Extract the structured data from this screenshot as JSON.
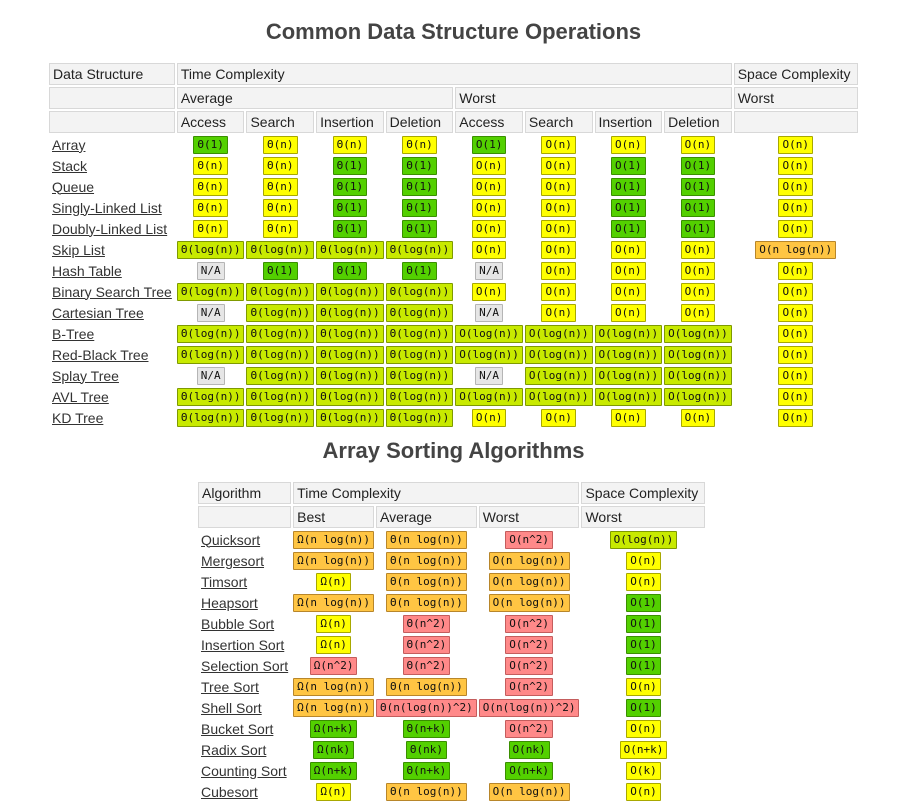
{
  "ds_title": "Common Data Structure Operations",
  "ds_headers": {
    "data_structure": "Data Structure",
    "time_complexity": "Time Complexity",
    "space_complexity": "Space Complexity",
    "average": "Average",
    "worst": "Worst",
    "space_worst": "Worst",
    "ops": [
      "Access",
      "Search",
      "Insertion",
      "Deletion",
      "Access",
      "Search",
      "Insertion",
      "Deletion"
    ]
  },
  "ds_rows": [
    {
      "name": "Array",
      "cells": [
        [
          "Θ(1)",
          "good"
        ],
        [
          "Θ(n)",
          "ok"
        ],
        [
          "Θ(n)",
          "ok"
        ],
        [
          "Θ(n)",
          "ok"
        ],
        [
          "O(1)",
          "good"
        ],
        [
          "O(n)",
          "ok"
        ],
        [
          "O(n)",
          "ok"
        ],
        [
          "O(n)",
          "ok"
        ],
        [
          "O(n)",
          "ok"
        ]
      ]
    },
    {
      "name": "Stack",
      "cells": [
        [
          "Θ(n)",
          "ok"
        ],
        [
          "Θ(n)",
          "ok"
        ],
        [
          "Θ(1)",
          "good"
        ],
        [
          "Θ(1)",
          "good"
        ],
        [
          "O(n)",
          "ok"
        ],
        [
          "O(n)",
          "ok"
        ],
        [
          "O(1)",
          "good"
        ],
        [
          "O(1)",
          "good"
        ],
        [
          "O(n)",
          "ok"
        ]
      ]
    },
    {
      "name": "Queue",
      "cells": [
        [
          "Θ(n)",
          "ok"
        ],
        [
          "Θ(n)",
          "ok"
        ],
        [
          "Θ(1)",
          "good"
        ],
        [
          "Θ(1)",
          "good"
        ],
        [
          "O(n)",
          "ok"
        ],
        [
          "O(n)",
          "ok"
        ],
        [
          "O(1)",
          "good"
        ],
        [
          "O(1)",
          "good"
        ],
        [
          "O(n)",
          "ok"
        ]
      ]
    },
    {
      "name": "Singly-Linked List",
      "cells": [
        [
          "Θ(n)",
          "ok"
        ],
        [
          "Θ(n)",
          "ok"
        ],
        [
          "Θ(1)",
          "good"
        ],
        [
          "Θ(1)",
          "good"
        ],
        [
          "O(n)",
          "ok"
        ],
        [
          "O(n)",
          "ok"
        ],
        [
          "O(1)",
          "good"
        ],
        [
          "O(1)",
          "good"
        ],
        [
          "O(n)",
          "ok"
        ]
      ]
    },
    {
      "name": "Doubly-Linked List",
      "cells": [
        [
          "Θ(n)",
          "ok"
        ],
        [
          "Θ(n)",
          "ok"
        ],
        [
          "Θ(1)",
          "good"
        ],
        [
          "Θ(1)",
          "good"
        ],
        [
          "O(n)",
          "ok"
        ],
        [
          "O(n)",
          "ok"
        ],
        [
          "O(1)",
          "good"
        ],
        [
          "O(1)",
          "good"
        ],
        [
          "O(n)",
          "ok"
        ]
      ]
    },
    {
      "name": "Skip List",
      "cells": [
        [
          "Θ(log(n))",
          "fair"
        ],
        [
          "Θ(log(n))",
          "fair"
        ],
        [
          "Θ(log(n))",
          "fair"
        ],
        [
          "Θ(log(n))",
          "fair"
        ],
        [
          "O(n)",
          "ok"
        ],
        [
          "O(n)",
          "ok"
        ],
        [
          "O(n)",
          "ok"
        ],
        [
          "O(n)",
          "ok"
        ],
        [
          "O(n log(n))",
          "bad"
        ]
      ]
    },
    {
      "name": "Hash Table",
      "cells": [
        [
          "N/A",
          "na"
        ],
        [
          "Θ(1)",
          "good"
        ],
        [
          "Θ(1)",
          "good"
        ],
        [
          "Θ(1)",
          "good"
        ],
        [
          "N/A",
          "na"
        ],
        [
          "O(n)",
          "ok"
        ],
        [
          "O(n)",
          "ok"
        ],
        [
          "O(n)",
          "ok"
        ],
        [
          "O(n)",
          "ok"
        ]
      ]
    },
    {
      "name": "Binary Search Tree",
      "cells": [
        [
          "Θ(log(n))",
          "fair"
        ],
        [
          "Θ(log(n))",
          "fair"
        ],
        [
          "Θ(log(n))",
          "fair"
        ],
        [
          "Θ(log(n))",
          "fair"
        ],
        [
          "O(n)",
          "ok"
        ],
        [
          "O(n)",
          "ok"
        ],
        [
          "O(n)",
          "ok"
        ],
        [
          "O(n)",
          "ok"
        ],
        [
          "O(n)",
          "ok"
        ]
      ]
    },
    {
      "name": "Cartesian Tree",
      "cells": [
        [
          "N/A",
          "na"
        ],
        [
          "Θ(log(n))",
          "fair"
        ],
        [
          "Θ(log(n))",
          "fair"
        ],
        [
          "Θ(log(n))",
          "fair"
        ],
        [
          "N/A",
          "na"
        ],
        [
          "O(n)",
          "ok"
        ],
        [
          "O(n)",
          "ok"
        ],
        [
          "O(n)",
          "ok"
        ],
        [
          "O(n)",
          "ok"
        ]
      ]
    },
    {
      "name": "B-Tree",
      "cells": [
        [
          "Θ(log(n))",
          "fair"
        ],
        [
          "Θ(log(n))",
          "fair"
        ],
        [
          "Θ(log(n))",
          "fair"
        ],
        [
          "Θ(log(n))",
          "fair"
        ],
        [
          "O(log(n))",
          "fair"
        ],
        [
          "O(log(n))",
          "fair"
        ],
        [
          "O(log(n))",
          "fair"
        ],
        [
          "O(log(n))",
          "fair"
        ],
        [
          "O(n)",
          "ok"
        ]
      ]
    },
    {
      "name": "Red-Black Tree",
      "cells": [
        [
          "Θ(log(n))",
          "fair"
        ],
        [
          "Θ(log(n))",
          "fair"
        ],
        [
          "Θ(log(n))",
          "fair"
        ],
        [
          "Θ(log(n))",
          "fair"
        ],
        [
          "O(log(n))",
          "fair"
        ],
        [
          "O(log(n))",
          "fair"
        ],
        [
          "O(log(n))",
          "fair"
        ],
        [
          "O(log(n))",
          "fair"
        ],
        [
          "O(n)",
          "ok"
        ]
      ]
    },
    {
      "name": "Splay Tree",
      "cells": [
        [
          "N/A",
          "na"
        ],
        [
          "Θ(log(n))",
          "fair"
        ],
        [
          "Θ(log(n))",
          "fair"
        ],
        [
          "Θ(log(n))",
          "fair"
        ],
        [
          "N/A",
          "na"
        ],
        [
          "O(log(n))",
          "fair"
        ],
        [
          "O(log(n))",
          "fair"
        ],
        [
          "O(log(n))",
          "fair"
        ],
        [
          "O(n)",
          "ok"
        ]
      ]
    },
    {
      "name": "AVL Tree",
      "cells": [
        [
          "Θ(log(n))",
          "fair"
        ],
        [
          "Θ(log(n))",
          "fair"
        ],
        [
          "Θ(log(n))",
          "fair"
        ],
        [
          "Θ(log(n))",
          "fair"
        ],
        [
          "O(log(n))",
          "fair"
        ],
        [
          "O(log(n))",
          "fair"
        ],
        [
          "O(log(n))",
          "fair"
        ],
        [
          "O(log(n))",
          "fair"
        ],
        [
          "O(n)",
          "ok"
        ]
      ]
    },
    {
      "name": "KD Tree",
      "cells": [
        [
          "Θ(log(n))",
          "fair"
        ],
        [
          "Θ(log(n))",
          "fair"
        ],
        [
          "Θ(log(n))",
          "fair"
        ],
        [
          "Θ(log(n))",
          "fair"
        ],
        [
          "O(n)",
          "ok"
        ],
        [
          "O(n)",
          "ok"
        ],
        [
          "O(n)",
          "ok"
        ],
        [
          "O(n)",
          "ok"
        ],
        [
          "O(n)",
          "ok"
        ]
      ]
    }
  ],
  "sort_title": "Array Sorting Algorithms",
  "sort_headers": {
    "algorithm": "Algorithm",
    "time_complexity": "Time Complexity",
    "space_complexity": "Space Complexity",
    "best": "Best",
    "average": "Average",
    "worst": "Worst",
    "space_worst": "Worst"
  },
  "sort_rows": [
    {
      "name": "Quicksort",
      "cells": [
        [
          "Ω(n log(n))",
          "bad"
        ],
        [
          "Θ(n log(n))",
          "bad"
        ],
        [
          "O(n^2)",
          "worst"
        ],
        [
          "O(log(n))",
          "fair"
        ]
      ]
    },
    {
      "name": "Mergesort",
      "cells": [
        [
          "Ω(n log(n))",
          "bad"
        ],
        [
          "Θ(n log(n))",
          "bad"
        ],
        [
          "O(n log(n))",
          "bad"
        ],
        [
          "O(n)",
          "ok"
        ]
      ]
    },
    {
      "name": "Timsort",
      "cells": [
        [
          "Ω(n)",
          "ok"
        ],
        [
          "Θ(n log(n))",
          "bad"
        ],
        [
          "O(n log(n))",
          "bad"
        ],
        [
          "O(n)",
          "ok"
        ]
      ]
    },
    {
      "name": "Heapsort",
      "cells": [
        [
          "Ω(n log(n))",
          "bad"
        ],
        [
          "Θ(n log(n))",
          "bad"
        ],
        [
          "O(n log(n))",
          "bad"
        ],
        [
          "O(1)",
          "good"
        ]
      ]
    },
    {
      "name": "Bubble Sort",
      "cells": [
        [
          "Ω(n)",
          "ok"
        ],
        [
          "Θ(n^2)",
          "worst"
        ],
        [
          "O(n^2)",
          "worst"
        ],
        [
          "O(1)",
          "good"
        ]
      ]
    },
    {
      "name": "Insertion Sort",
      "cells": [
        [
          "Ω(n)",
          "ok"
        ],
        [
          "Θ(n^2)",
          "worst"
        ],
        [
          "O(n^2)",
          "worst"
        ],
        [
          "O(1)",
          "good"
        ]
      ]
    },
    {
      "name": "Selection Sort",
      "cells": [
        [
          "Ω(n^2)",
          "worst"
        ],
        [
          "Θ(n^2)",
          "worst"
        ],
        [
          "O(n^2)",
          "worst"
        ],
        [
          "O(1)",
          "good"
        ]
      ]
    },
    {
      "name": "Tree Sort",
      "cells": [
        [
          "Ω(n log(n))",
          "bad"
        ],
        [
          "Θ(n log(n))",
          "bad"
        ],
        [
          "O(n^2)",
          "worst"
        ],
        [
          "O(n)",
          "ok"
        ]
      ]
    },
    {
      "name": "Shell Sort",
      "cells": [
        [
          "Ω(n log(n))",
          "bad"
        ],
        [
          "Θ(n(log(n))^2)",
          "worst"
        ],
        [
          "O(n(log(n))^2)",
          "worst"
        ],
        [
          "O(1)",
          "good"
        ]
      ]
    },
    {
      "name": "Bucket Sort",
      "cells": [
        [
          "Ω(n+k)",
          "good"
        ],
        [
          "Θ(n+k)",
          "good"
        ],
        [
          "O(n^2)",
          "worst"
        ],
        [
          "O(n)",
          "ok"
        ]
      ]
    },
    {
      "name": "Radix Sort",
      "cells": [
        [
          "Ω(nk)",
          "good"
        ],
        [
          "Θ(nk)",
          "good"
        ],
        [
          "O(nk)",
          "good"
        ],
        [
          "O(n+k)",
          "ok"
        ]
      ]
    },
    {
      "name": "Counting Sort",
      "cells": [
        [
          "Ω(n+k)",
          "good"
        ],
        [
          "Θ(n+k)",
          "good"
        ],
        [
          "O(n+k)",
          "good"
        ],
        [
          "O(k)",
          "ok"
        ]
      ]
    },
    {
      "name": "Cubesort",
      "cells": [
        [
          "Ω(n)",
          "ok"
        ],
        [
          "Θ(n log(n))",
          "bad"
        ],
        [
          "O(n log(n))",
          "bad"
        ],
        [
          "O(n)",
          "ok"
        ]
      ]
    }
  ]
}
